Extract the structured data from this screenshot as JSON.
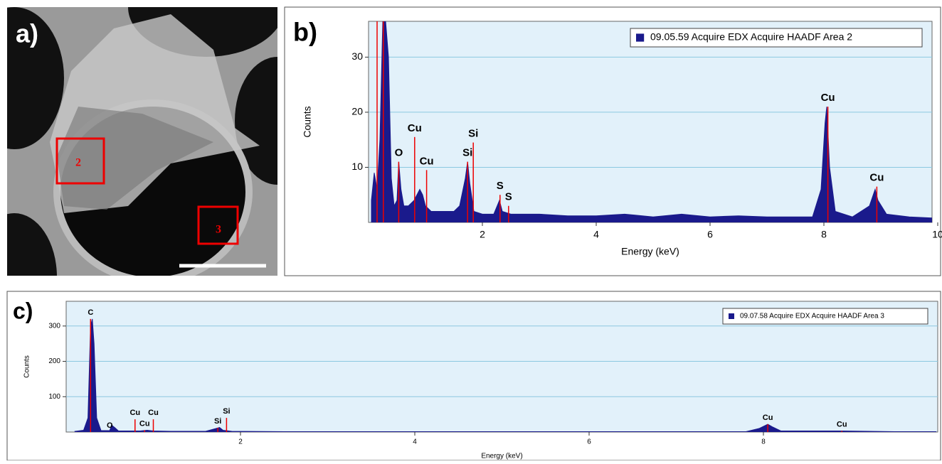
{
  "image_panel": {
    "label": "a)",
    "regions": [
      "2",
      "3"
    ]
  },
  "chart_data": [
    {
      "type": "area",
      "panel_label": "b)",
      "xlabel": "Energy (keV)",
      "ylabel": "Counts",
      "xlim": [
        0,
        10
      ],
      "ylim": [
        0,
        36.5
      ],
      "xticks": [
        2,
        4,
        6,
        8,
        10
      ],
      "yticks": [
        10,
        20,
        30
      ],
      "grid": true,
      "legend": "upper right",
      "x": [
        0.05,
        0.1,
        0.15,
        0.2,
        0.25,
        0.3,
        0.35,
        0.4,
        0.45,
        0.5,
        0.53,
        0.57,
        0.62,
        0.7,
        0.8,
        0.9,
        0.95,
        1.0,
        1.1,
        1.2,
        1.3,
        1.4,
        1.5,
        1.6,
        1.7,
        1.74,
        1.78,
        1.85,
        2.0,
        2.2,
        2.3,
        2.35,
        2.5,
        3,
        3.5,
        4,
        4.5,
        5,
        5.5,
        6,
        6.5,
        7,
        7.5,
        7.8,
        7.95,
        8.02,
        8.05,
        8.1,
        8.2,
        8.5,
        8.8,
        8.9,
        8.95,
        9.1,
        9.5,
        9.9
      ],
      "series": [
        {
          "name": "09.05.59 Acquire EDX Acquire HAADF Area 2",
          "color": "#1a1a8c",
          "values": [
            4,
            9,
            6,
            15,
            36.5,
            36.5,
            30,
            8,
            3,
            4,
            11,
            6,
            3,
            3,
            4,
            6,
            5,
            3,
            2,
            2,
            2,
            2,
            2,
            3,
            8,
            11,
            7,
            2,
            1.5,
            1.5,
            4,
            2,
            1.5,
            1.5,
            1.2,
            1.2,
            1.5,
            1,
            1.5,
            1,
            1.2,
            1,
            1,
            1,
            6,
            18,
            21,
            10,
            2,
            1,
            3,
            6,
            4,
            1.5,
            1,
            0.8
          ]
        }
      ],
      "markers": [
        {
          "label": null,
          "x": 0.15,
          "y": 36.5
        },
        {
          "label": null,
          "x": 0.26,
          "y": 36.5
        },
        {
          "label": "O",
          "x": 0.53,
          "y": 11
        },
        {
          "label": "Cu",
          "x": 0.81,
          "y": 15.5
        },
        {
          "label": "Cu",
          "x": 1.02,
          "y": 9.5
        },
        {
          "label": "Si",
          "x": 1.74,
          "y": 11
        },
        {
          "label": "Si",
          "x": 1.84,
          "y": 14.5
        },
        {
          "label": "S",
          "x": 2.31,
          "y": 5
        },
        {
          "label": "S",
          "x": 2.46,
          "y": 3
        },
        {
          "label": "Cu",
          "x": 8.07,
          "y": 21
        },
        {
          "label": "Cu",
          "x": 8.93,
          "y": 6.5
        }
      ]
    },
    {
      "type": "area",
      "panel_label": "c)",
      "xlabel": "Energy (keV)",
      "ylabel": "Counts",
      "xlim": [
        0,
        10
      ],
      "ylim": [
        0,
        370
      ],
      "xticks": [
        2,
        4,
        6,
        8
      ],
      "yticks": [
        100,
        200,
        300
      ],
      "grid": true,
      "legend": "upper right",
      "x": [
        0.1,
        0.2,
        0.25,
        0.28,
        0.3,
        0.32,
        0.35,
        0.4,
        0.5,
        0.52,
        0.56,
        0.6,
        0.85,
        0.93,
        1.0,
        1.2,
        1.6,
        1.72,
        1.76,
        1.8,
        1.9,
        2.5,
        4,
        6,
        7.8,
        7.95,
        8.05,
        8.1,
        8.2,
        8.9,
        9.5,
        9.98
      ],
      "series": [
        {
          "name": "09.07.58 Acquire EDX Acquire HAADF Area 3",
          "color": "#1a1a8c",
          "values": [
            2,
            5,
            40,
            300,
            320,
            250,
            40,
            4,
            4,
            20,
            12,
            3,
            3,
            5,
            3,
            2,
            2,
            10,
            13,
            5,
            2,
            1,
            1,
            1,
            1,
            10,
            22,
            15,
            3,
            3,
            1,
            1
          ]
        }
      ],
      "markers": [
        {
          "label": "C",
          "x": 0.28,
          "y": 320
        },
        {
          "label": "O",
          "x": 0.5,
          "y": 0
        },
        {
          "label": "Cu",
          "x": 0.79,
          "y": 36
        },
        {
          "label": "Cu",
          "x": 0.9,
          "y": 5
        },
        {
          "label": "Cu",
          "x": 1.0,
          "y": 36
        },
        {
          "label": "Si",
          "x": 1.74,
          "y": 12
        },
        {
          "label": "Si",
          "x": 1.84,
          "y": 40
        },
        {
          "label": "Cu",
          "x": 8.05,
          "y": 22
        },
        {
          "label": "Cu",
          "x": 8.9,
          "y": 3
        }
      ]
    }
  ]
}
